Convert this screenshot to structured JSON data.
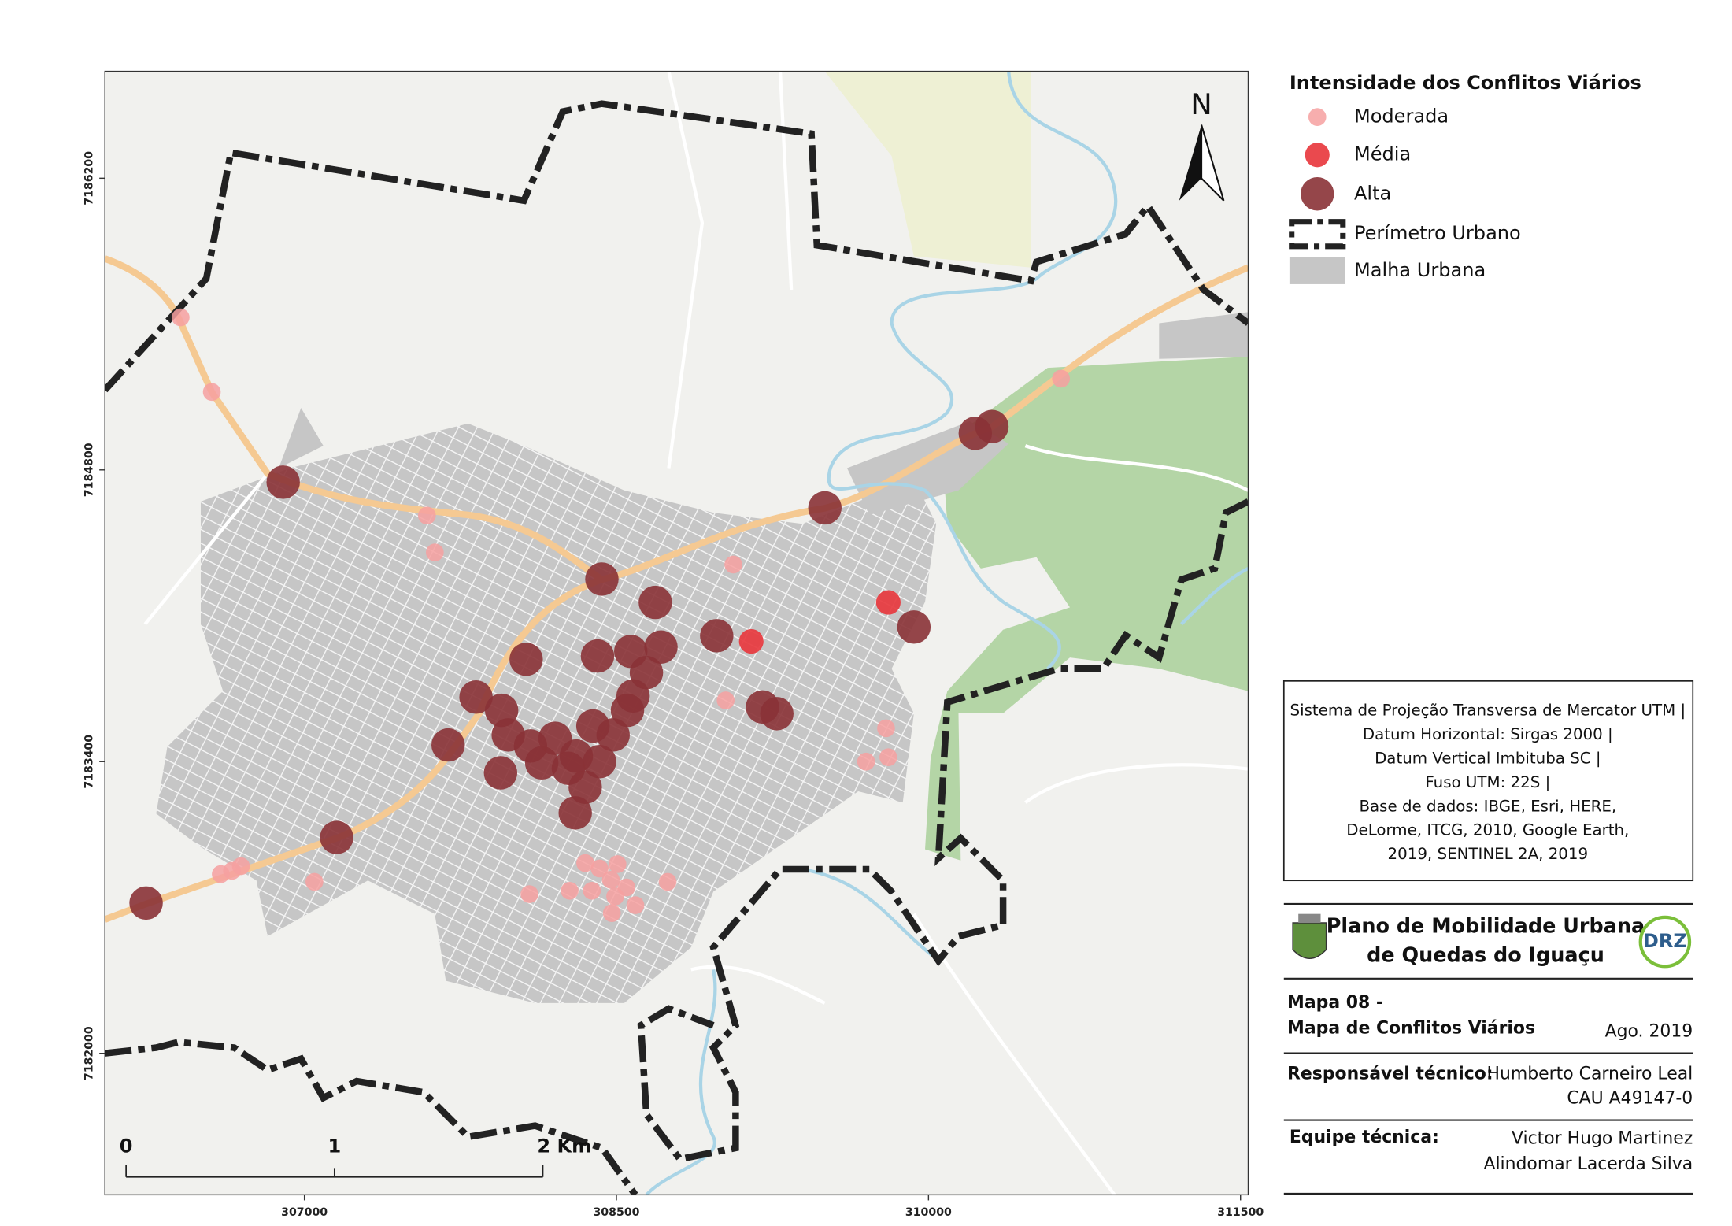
{
  "legend": {
    "title": "Intensidade dos Conflitos Viários",
    "items": [
      {
        "label": "Moderada",
        "color": "#f6a0a0",
        "radius": 8,
        "opacity": 0.85,
        "points": [
          [
            306405,
            7185532
          ],
          [
            306555,
            7185174
          ],
          [
            307589,
            7184581
          ],
          [
            307627,
            7184404
          ],
          [
            309062,
            7184346
          ],
          [
            309025,
            7183694
          ],
          [
            309796,
            7183560
          ],
          [
            309807,
            7183421
          ],
          [
            309700,
            7183400
          ],
          [
            310637,
            7185238
          ],
          [
            306598,
            7182860
          ],
          [
            306652,
            7182876
          ],
          [
            306695,
            7182898
          ],
          [
            307048,
            7182823
          ],
          [
            308082,
            7182764
          ],
          [
            308275,
            7182780
          ],
          [
            308350,
            7182913
          ],
          [
            308419,
            7182887
          ],
          [
            308473,
            7182833
          ],
          [
            308548,
            7182796
          ],
          [
            308382,
            7182780
          ],
          [
            308494,
            7182753
          ],
          [
            308591,
            7182711
          ],
          [
            308478,
            7182673
          ],
          [
            308746,
            7182823
          ],
          [
            308505,
            7182908
          ]
        ]
      },
      {
        "label": "Média",
        "color": "#e8353b",
        "radius": 11,
        "opacity": 0.9,
        "points": [
          [
            309148,
            7183977
          ],
          [
            309807,
            7184164
          ]
        ]
      },
      {
        "label": "Alta",
        "color": "#8a3236",
        "radius": 15,
        "opacity": 0.9,
        "points": [
          [
            306898,
            7184741
          ],
          [
            309502,
            7184618
          ],
          [
            310225,
            7184976
          ],
          [
            310305,
            7185008
          ],
          [
            308430,
            7184276
          ],
          [
            308687,
            7184164
          ],
          [
            308066,
            7183891
          ],
          [
            308409,
            7183907
          ],
          [
            308569,
            7183929
          ],
          [
            308714,
            7183950
          ],
          [
            308982,
            7184004
          ],
          [
            309930,
            7184046
          ],
          [
            308644,
            7183827
          ],
          [
            308580,
            7183715
          ],
          [
            308553,
            7183646
          ],
          [
            307825,
            7183710
          ],
          [
            307948,
            7183646
          ],
          [
            309202,
            7183662
          ],
          [
            309271,
            7183630
          ],
          [
            307691,
            7183480
          ],
          [
            307980,
            7183528
          ],
          [
            308087,
            7183475
          ],
          [
            308205,
            7183512
          ],
          [
            308387,
            7183571
          ],
          [
            308484,
            7183528
          ],
          [
            308141,
            7183394
          ],
          [
            308307,
            7183427
          ],
          [
            308419,
            7183400
          ],
          [
            307943,
            7183346
          ],
          [
            308269,
            7183368
          ],
          [
            308350,
            7183277
          ],
          [
            308302,
            7183154
          ],
          [
            307155,
            7183036
          ],
          [
            306239,
            7182721
          ]
        ]
      }
    ],
    "perimeter": "Perímetro Urbano",
    "urban": "Malha Urbana"
  },
  "north": "N",
  "map": {
    "xlim": [
      306041,
      311537
    ],
    "ylim": [
      7181321,
      7186713
    ],
    "xticks": [
      307000,
      308500,
      310000,
      311500
    ],
    "yticks": [
      7182000,
      7183400,
      7184800,
      7186200
    ]
  },
  "scale_bar": {
    "labels": [
      "0",
      "1",
      "2 Km"
    ]
  },
  "projection": {
    "lines": [
      "Sistema de Projeção Transversa de Mercator UTM |",
      "Datum Horizontal: Sirgas 2000 |",
      "Datum Vertical Imbituba SC |",
      "Fuso UTM: 22S |",
      "Base de dados: IBGE, Esri, HERE,",
      "DeLorme, ITCG, 2010, Google Earth,",
      "2019, SENTINEL 2A, 2019"
    ]
  },
  "title": {
    "line1": "Plano de Mobilidade Urbana",
    "line2": "de Quedas do Iguaçu",
    "logo_text": "DRZ"
  },
  "map_number": "Mapa 08 -",
  "map_name": "Mapa de Conflitos Viários",
  "date": "Ago. 2019",
  "responsible": {
    "label": "Responsável técnico:",
    "name": "Humberto Carneiro Leal",
    "id": "CAU A49147-0"
  },
  "team": {
    "label": "Equipe técnica:",
    "members": [
      "Victor Hugo Martinez",
      "Alindomar Lacerda Silva"
    ]
  }
}
